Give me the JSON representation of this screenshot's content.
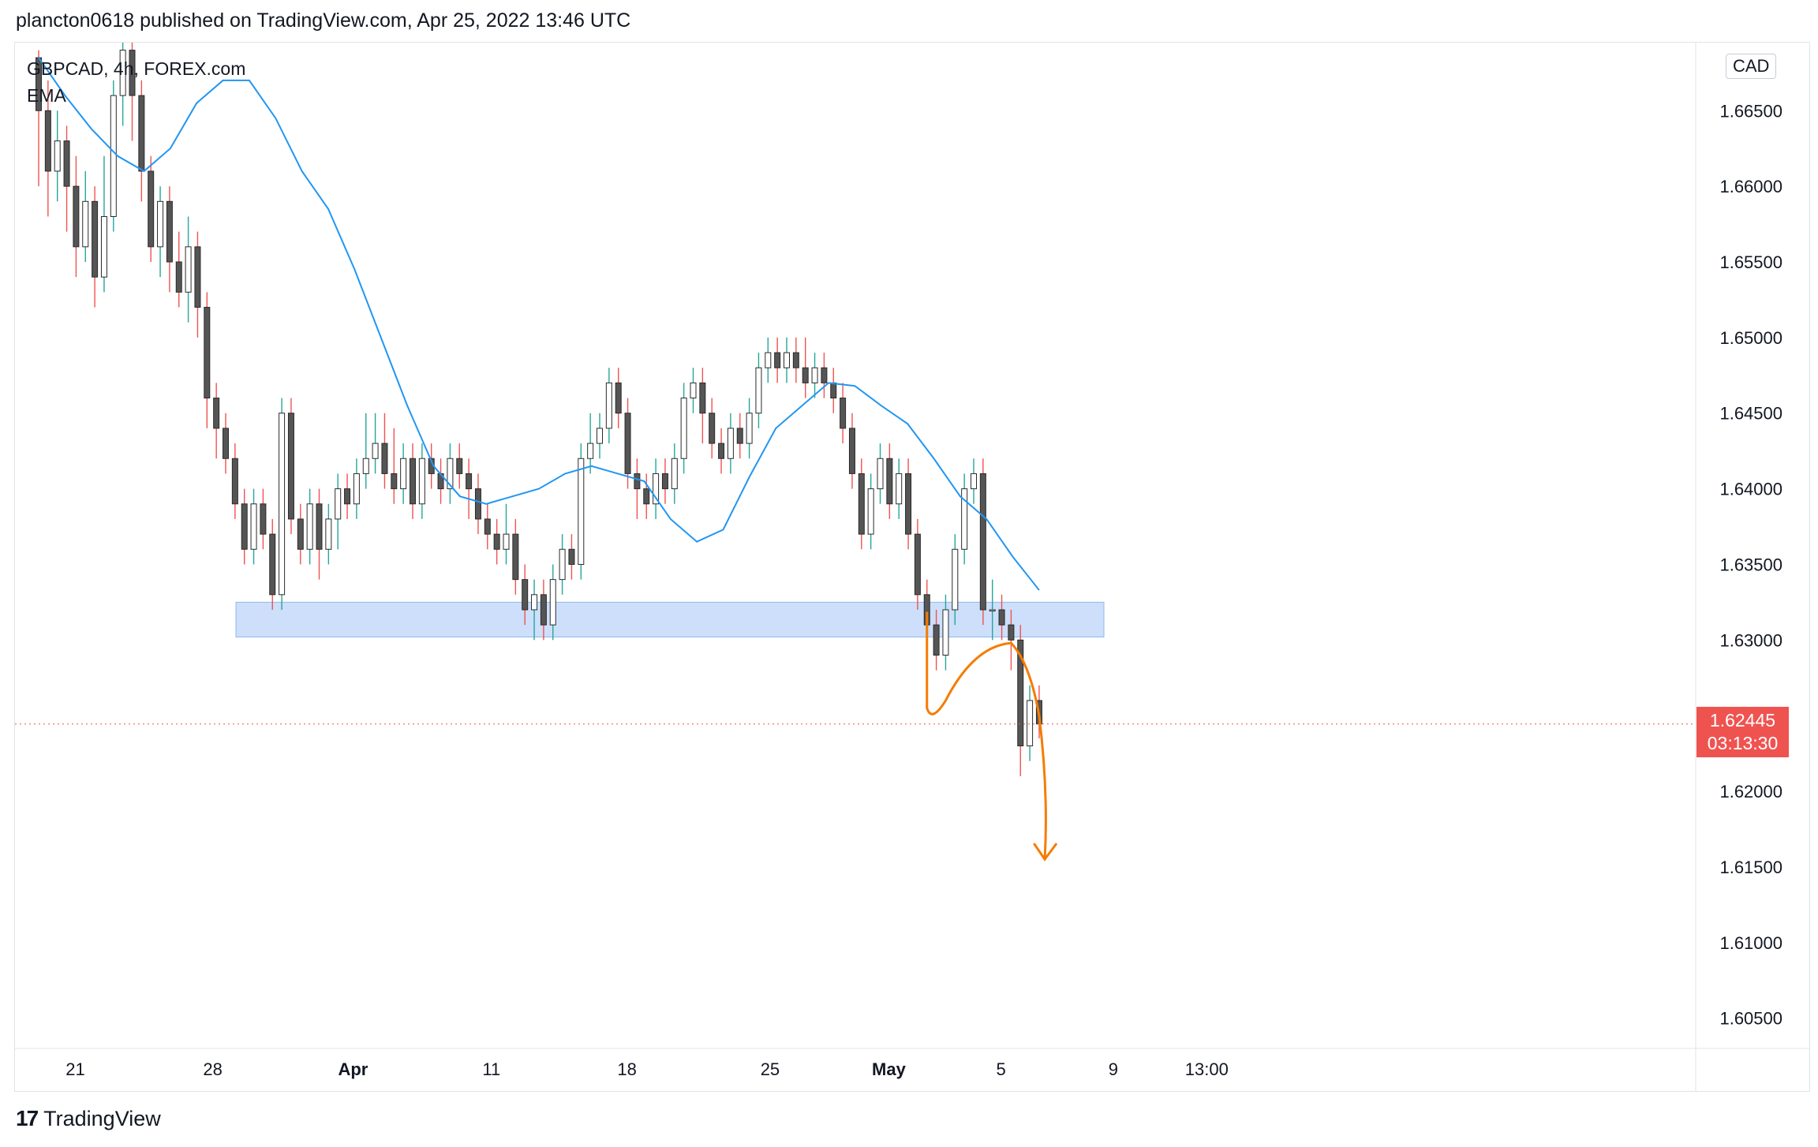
{
  "header": {
    "published_line": "plancton0618 published on TradingView.com, Apr 25, 2022 13:46 UTC"
  },
  "legend": {
    "symbol_line": "GBPCAD, 4h, FOREX.com",
    "indicator": "EMA"
  },
  "currency_badge": "CAD",
  "price_tag": {
    "price": "1.62445",
    "countdown": "03:13:30",
    "color": "#ef5350"
  },
  "footer": {
    "brand": "TradingView",
    "logo_icon": "tradingview-logo-icon"
  },
  "colors": {
    "up": "#2b2b2b",
    "down": "#555555",
    "wick_up": "#26a69a",
    "wick_down": "#ef5350",
    "ema": "#2196f3",
    "zone_fill": "#bcd4f8",
    "zone_stroke": "#90b8f0",
    "annotation": "#f57c00"
  },
  "chart_data": {
    "type": "candlestick",
    "symbol": "GBPCAD",
    "timeframe": "4h",
    "source": "FOREX.com",
    "ylim": [
      1.603,
      1.6695
    ],
    "y_ticks": [
      "1.60500",
      "1.61000",
      "1.61500",
      "1.62000",
      "1.62500",
      "1.63000",
      "1.63500",
      "1.64000",
      "1.64500",
      "1.65000",
      "1.65500",
      "1.66000",
      "1.66500"
    ],
    "x_ticks": [
      {
        "label": "21",
        "date": "2022-03-21"
      },
      {
        "label": "28",
        "date": "2022-03-28"
      },
      {
        "label": "Apr",
        "date": "2022-04-01"
      },
      {
        "label": "11",
        "date": "2022-04-11"
      },
      {
        "label": "18",
        "date": "2022-04-18"
      },
      {
        "label": "25",
        "date": "2022-04-25"
      },
      {
        "label": "May",
        "date": "2022-05-01"
      },
      {
        "label": "5",
        "date": "2022-05-05"
      },
      {
        "label": "9",
        "date": "2022-05-09"
      },
      {
        "label": "13:00",
        "date": "2022-05-12 13:00"
      }
    ],
    "last_price": 1.62445,
    "support_zone": {
      "low": 1.6302,
      "high": 1.6325
    },
    "ema_series": [
      1.6685,
      1.666,
      1.6638,
      1.662,
      1.661,
      1.6625,
      1.6655,
      1.667,
      1.667,
      1.6645,
      1.661,
      1.6585,
      1.6545,
      1.65,
      1.6455,
      1.6415,
      1.6395,
      1.639,
      1.6395,
      1.64,
      1.641,
      1.6415,
      1.641,
      1.6405,
      1.638,
      1.6365,
      1.6373,
      1.6408,
      1.644,
      1.6455,
      1.647,
      1.6468,
      1.6455,
      1.6443,
      1.642,
      1.6395,
      1.638,
      1.6355,
      1.6333
    ],
    "candles": [
      [
        1.6685,
        1.665,
        1.669,
        1.66
      ],
      [
        1.665,
        1.661,
        1.667,
        1.658
      ],
      [
        1.661,
        1.663,
        1.665,
        1.659
      ],
      [
        1.663,
        1.66,
        1.664,
        1.657
      ],
      [
        1.66,
        1.656,
        1.662,
        1.654
      ],
      [
        1.656,
        1.659,
        1.661,
        1.655
      ],
      [
        1.659,
        1.654,
        1.66,
        1.652
      ],
      [
        1.654,
        1.658,
        1.662,
        1.653
      ],
      [
        1.658,
        1.666,
        1.667,
        1.657
      ],
      [
        1.666,
        1.669,
        1.67,
        1.664
      ],
      [
        1.669,
        1.666,
        1.67,
        1.663
      ],
      [
        1.666,
        1.661,
        1.667,
        1.659
      ],
      [
        1.661,
        1.656,
        1.662,
        1.655
      ],
      [
        1.656,
        1.659,
        1.66,
        1.654
      ],
      [
        1.659,
        1.655,
        1.66,
        1.653
      ],
      [
        1.655,
        1.653,
        1.657,
        1.652
      ],
      [
        1.653,
        1.656,
        1.658,
        1.651
      ],
      [
        1.656,
        1.652,
        1.657,
        1.65
      ],
      [
        1.652,
        1.646,
        1.653,
        1.644
      ],
      [
        1.646,
        1.644,
        1.647,
        1.642
      ],
      [
        1.644,
        1.642,
        1.645,
        1.641
      ],
      [
        1.642,
        1.639,
        1.643,
        1.638
      ],
      [
        1.639,
        1.636,
        1.64,
        1.635
      ],
      [
        1.636,
        1.639,
        1.64,
        1.635
      ],
      [
        1.639,
        1.637,
        1.64,
        1.636
      ],
      [
        1.637,
        1.633,
        1.638,
        1.632
      ],
      [
        1.633,
        1.645,
        1.646,
        1.632
      ],
      [
        1.645,
        1.638,
        1.646,
        1.637
      ],
      [
        1.638,
        1.636,
        1.639,
        1.635
      ],
      [
        1.636,
        1.639,
        1.64,
        1.635
      ],
      [
        1.639,
        1.636,
        1.64,
        1.634
      ],
      [
        1.636,
        1.638,
        1.639,
        1.635
      ],
      [
        1.638,
        1.64,
        1.641,
        1.636
      ],
      [
        1.64,
        1.639,
        1.641,
        1.638
      ],
      [
        1.639,
        1.641,
        1.642,
        1.638
      ],
      [
        1.641,
        1.642,
        1.645,
        1.64
      ],
      [
        1.642,
        1.643,
        1.645,
        1.641
      ],
      [
        1.643,
        1.641,
        1.645,
        1.64
      ],
      [
        1.641,
        1.64,
        1.644,
        1.639
      ],
      [
        1.64,
        1.642,
        1.643,
        1.639
      ],
      [
        1.642,
        1.639,
        1.643,
        1.638
      ],
      [
        1.639,
        1.642,
        1.643,
        1.638
      ],
      [
        1.642,
        1.641,
        1.643,
        1.64
      ],
      [
        1.641,
        1.64,
        1.642,
        1.639
      ],
      [
        1.64,
        1.642,
        1.643,
        1.639
      ],
      [
        1.642,
        1.641,
        1.643,
        1.64
      ],
      [
        1.641,
        1.64,
        1.642,
        1.638
      ],
      [
        1.64,
        1.638,
        1.641,
        1.637
      ],
      [
        1.638,
        1.637,
        1.639,
        1.636
      ],
      [
        1.637,
        1.636,
        1.638,
        1.635
      ],
      [
        1.636,
        1.637,
        1.639,
        1.635
      ],
      [
        1.637,
        1.634,
        1.638,
        1.633
      ],
      [
        1.634,
        1.632,
        1.635,
        1.631
      ],
      [
        1.632,
        1.633,
        1.634,
        1.63
      ],
      [
        1.633,
        1.631,
        1.634,
        1.63
      ],
      [
        1.631,
        1.634,
        1.635,
        1.63
      ],
      [
        1.634,
        1.636,
        1.637,
        1.633
      ],
      [
        1.636,
        1.635,
        1.637,
        1.634
      ],
      [
        1.635,
        1.642,
        1.643,
        1.634
      ],
      [
        1.642,
        1.643,
        1.645,
        1.641
      ],
      [
        1.643,
        1.644,
        1.645,
        1.642
      ],
      [
        1.644,
        1.647,
        1.648,
        1.643
      ],
      [
        1.647,
        1.645,
        1.648,
        1.644
      ],
      [
        1.645,
        1.641,
        1.646,
        1.64
      ],
      [
        1.641,
        1.64,
        1.642,
        1.638
      ],
      [
        1.64,
        1.639,
        1.641,
        1.638
      ],
      [
        1.639,
        1.641,
        1.642,
        1.638
      ],
      [
        1.641,
        1.64,
        1.642,
        1.639
      ],
      [
        1.64,
        1.642,
        1.643,
        1.639
      ],
      [
        1.642,
        1.646,
        1.647,
        1.641
      ],
      [
        1.646,
        1.647,
        1.648,
        1.645
      ],
      [
        1.647,
        1.645,
        1.648,
        1.643
      ],
      [
        1.645,
        1.643,
        1.646,
        1.642
      ],
      [
        1.643,
        1.642,
        1.644,
        1.641
      ],
      [
        1.642,
        1.644,
        1.645,
        1.641
      ],
      [
        1.644,
        1.643,
        1.645,
        1.642
      ],
      [
        1.643,
        1.645,
        1.646,
        1.642
      ],
      [
        1.645,
        1.648,
        1.649,
        1.644
      ],
      [
        1.648,
        1.649,
        1.65,
        1.647
      ],
      [
        1.649,
        1.648,
        1.65,
        1.647
      ],
      [
        1.648,
        1.649,
        1.65,
        1.647
      ],
      [
        1.649,
        1.648,
        1.65,
        1.647
      ],
      [
        1.648,
        1.647,
        1.65,
        1.646
      ],
      [
        1.647,
        1.648,
        1.649,
        1.646
      ],
      [
        1.648,
        1.647,
        1.649,
        1.646
      ],
      [
        1.647,
        1.646,
        1.648,
        1.645
      ],
      [
        1.646,
        1.644,
        1.647,
        1.643
      ],
      [
        1.644,
        1.641,
        1.645,
        1.64
      ],
      [
        1.641,
        1.637,
        1.642,
        1.636
      ],
      [
        1.637,
        1.64,
        1.641,
        1.636
      ],
      [
        1.64,
        1.642,
        1.643,
        1.639
      ],
      [
        1.642,
        1.639,
        1.643,
        1.638
      ],
      [
        1.639,
        1.641,
        1.642,
        1.638
      ],
      [
        1.641,
        1.637,
        1.642,
        1.636
      ],
      [
        1.637,
        1.633,
        1.638,
        1.632
      ],
      [
        1.633,
        1.631,
        1.634,
        1.629
      ],
      [
        1.631,
        1.629,
        1.632,
        1.628
      ],
      [
        1.629,
        1.632,
        1.633,
        1.628
      ],
      [
        1.632,
        1.636,
        1.637,
        1.631
      ],
      [
        1.636,
        1.64,
        1.641,
        1.635
      ],
      [
        1.64,
        1.641,
        1.642,
        1.639
      ],
      [
        1.641,
        1.632,
        1.642,
        1.631
      ],
      [
        1.632,
        1.632,
        1.634,
        1.63
      ],
      [
        1.632,
        1.631,
        1.633,
        1.63
      ],
      [
        1.631,
        1.63,
        1.632,
        1.628
      ],
      [
        1.63,
        1.623,
        1.631,
        1.621
      ],
      [
        1.623,
        1.626,
        1.627,
        1.622
      ],
      [
        1.626,
        1.62445,
        1.627,
        1.6235
      ]
    ]
  }
}
